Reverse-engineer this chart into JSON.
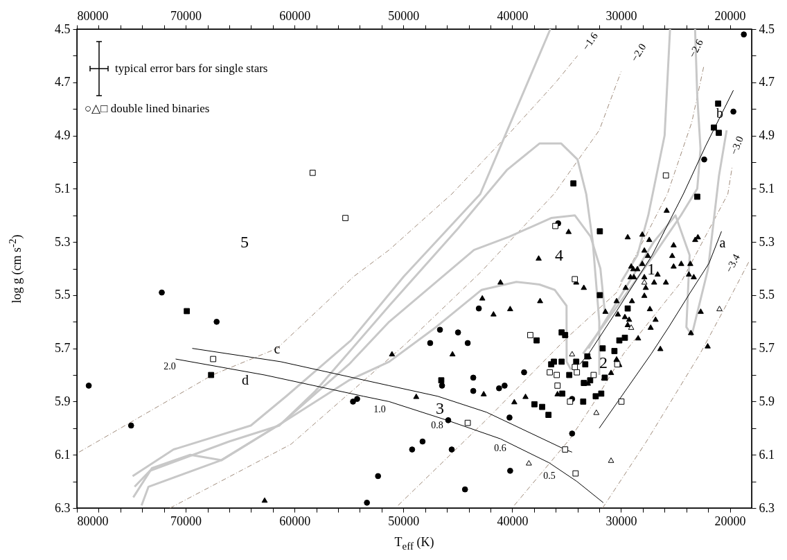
{
  "chart_data": {
    "type": "scatter",
    "xlabel": "T$_{eff}$ (K)",
    "ylabel": "log g (cm s$^{-2}$)",
    "xlim": [
      80000,
      18000
    ],
    "ylim": [
      6.3,
      4.5
    ],
    "xticks": [
      80000,
      {
        "value": 78000,
        "label": null
      },
      {
        "value": 76000,
        "label": null
      },
      {
        "value": 74000,
        "label": null
      },
      {
        "value": 72000,
        "label": null
      },
      70000,
      {
        "value": 68000,
        "label": null
      },
      {
        "value": 66000,
        "label": null
      },
      {
        "value": 64000,
        "label": null
      },
      {
        "value": 62000,
        "label": null
      },
      60000,
      {
        "value": 58000,
        "label": null
      },
      {
        "value": 56000,
        "label": null
      },
      {
        "value": 54000,
        "label": null
      },
      {
        "value": 52000,
        "label": null
      },
      50000,
      {
        "value": 48000,
        "label": null
      },
      {
        "value": 46000,
        "label": null
      },
      {
        "value": 44000,
        "label": null
      },
      {
        "value": 42000,
        "label": null
      },
      40000,
      {
        "value": 38000,
        "label": null
      },
      {
        "value": 36000,
        "label": null
      },
      {
        "value": 34000,
        "label": null
      },
      {
        "value": 32000,
        "label": null
      },
      30000,
      {
        "value": 28000,
        "label": null
      },
      {
        "value": 26000,
        "label": null
      },
      {
        "value": 24000,
        "label": null
      },
      {
        "value": 22000,
        "label": null
      },
      20000
    ],
    "yticks": [
      4.5,
      {
        "value": 4.6,
        "label": null
      },
      4.7,
      {
        "value": 4.8,
        "label": null
      },
      4.9,
      {
        "value": 5.0,
        "label": null
      },
      5.1,
      {
        "value": 5.2,
        "label": null
      },
      5.3,
      {
        "value": 5.4,
        "label": null
      },
      5.5,
      {
        "value": 5.6,
        "label": null
      },
      5.7,
      {
        "value": 5.8,
        "label": null
      },
      5.9,
      {
        "value": 6.0,
        "label": null
      },
      6.1,
      {
        "value": 6.2,
        "label": null
      },
      6.3
    ],
    "x2lim": [
      80000,
      18000
    ],
    "y2lim": [
      6.3,
      4.5
    ],
    "x2ticks": [
      80000,
      {
        "value": 78000,
        "label": null
      },
      {
        "value": 76000,
        "label": null
      },
      {
        "value": 74000,
        "label": null
      },
      {
        "value": 72000,
        "label": null
      },
      70000,
      {
        "value": 68000,
        "label": null
      },
      {
        "value": 66000,
        "label": null
      },
      {
        "value": 64000,
        "label": null
      },
      {
        "value": 62000,
        "label": null
      },
      60000,
      {
        "value": 58000,
        "label": null
      },
      {
        "value": 56000,
        "label": null
      },
      {
        "value": 54000,
        "label": null
      },
      {
        "value": 52000,
        "label": null
      },
      50000,
      {
        "value": 48000,
        "label": null
      },
      {
        "value": 46000,
        "label": null
      },
      {
        "value": 44000,
        "label": null
      },
      {
        "value": 42000,
        "label": null
      },
      40000,
      {
        "value": 38000,
        "label": null
      },
      {
        "value": 36000,
        "label": null
      },
      {
        "value": 34000,
        "label": null
      },
      {
        "value": 32000,
        "label": null
      },
      30000,
      {
        "value": 28000,
        "label": null
      },
      {
        "value": 26000,
        "label": null
      },
      {
        "value": 24000,
        "label": null
      },
      {
        "value": 22000,
        "label": null
      },
      20000
    ],
    "y2ticks": [
      4.5,
      {
        "value": 4.6,
        "label": null
      },
      4.7,
      {
        "value": 4.8,
        "label": null
      },
      4.9,
      {
        "value": 5.0,
        "label": null
      },
      5.1,
      {
        "value": 5.2,
        "label": null
      },
      5.3,
      {
        "value": 5.4,
        "label": null
      },
      5.5,
      {
        "value": 5.6,
        "label": null
      },
      5.7,
      {
        "value": 5.8,
        "label": null
      },
      5.9,
      {
        "value": 6.0,
        "label": null
      },
      6.1,
      {
        "value": 6.2,
        "label": null
      },
      6.3
    ],
    "series": [
      {
        "type": "line",
        "color": "#a08c7c",
        "line_style": "dashdot",
        "x": [
          79800,
          67550,
          61600,
          54570,
          51310,
          45560,
          40000,
          36000,
          34000
        ],
        "values": [
          6.09,
          5.8,
          5.7,
          5.43,
          5.33,
          5.12,
          4.88,
          4.7,
          4.6
        ]
      },
      {
        "type": "line",
        "color": "#a08c7c",
        "line_style": "dashdot",
        "x": [
          71440,
          60320,
          49970,
          42810,
          36170,
          32000,
          30000
        ],
        "values": [
          6.3,
          6.06,
          5.69,
          5.41,
          5.12,
          4.88,
          4.66
        ]
      },
      {
        "type": "line",
        "color": "#a08c7c",
        "line_style": "dashdot",
        "x": [
          50480,
          42170,
          36420,
          34700,
          30410,
          25750,
          23500,
          22400
        ],
        "values": [
          6.29,
          5.96,
          5.72,
          5.65,
          5.49,
          5.12,
          4.85,
          4.64
        ]
      },
      {
        "type": "line",
        "color": "#a08c7c",
        "line_style": "dashdot",
        "x": [
          39810,
          34690,
          32590,
          29770,
          24470,
          20190,
          19800
        ],
        "values": [
          6.29,
          6.04,
          5.91,
          5.72,
          5.45,
          5.12,
          5.02
        ]
      },
      {
        "type": "line",
        "color": "#a08c7c",
        "line_style": "dashdot",
        "x": [
          31700,
          27670,
          22740,
          20500,
          18200
        ],
        "values": [
          6.3,
          6.05,
          5.72,
          5.55,
          5.37
        ]
      },
      {
        "type": "line",
        "color": "#c8c8c8",
        "x": [
          74880,
          71120,
          64020,
          60770,
          54820,
          49970,
          42940,
          36500
        ],
        "values": [
          6.18,
          6.08,
          5.99,
          5.88,
          5.67,
          5.43,
          5.12,
          4.5
        ]
      },
      {
        "type": "line",
        "color": "#c8c8c8",
        "x": [
          74700,
          73290,
          66010,
          61400,
          58080,
          51310,
          45000,
          40500,
          37500,
          35500,
          34000,
          33200,
          32600,
          32000,
          32000
        ],
        "values": [
          6.22,
          6.16,
          6.05,
          5.99,
          5.86,
          5.54,
          5.25,
          5.03,
          4.93,
          4.93,
          4.99,
          5.12,
          5.3,
          5.6,
          5.8
        ]
      },
      {
        "type": "line",
        "color": "#c8c8c8",
        "x": [
          74820,
          73100,
          69580,
          66710,
          61150,
          55000,
          51310,
          43510,
          40250,
          36420,
          34250,
          32800,
          31900,
          31500
        ],
        "values": [
          6.26,
          6.15,
          6.1,
          6.12,
          5.98,
          5.76,
          5.6,
          5.33,
          5.28,
          5.21,
          5.2,
          5.28,
          5.4,
          5.56
        ]
      },
      {
        "type": "line",
        "color": "#c8c8c8",
        "x": [
          74060,
          73420,
          66710,
          61150,
          55000,
          51300,
          47000,
          42810,
          39620,
          37500,
          36100,
          35010,
          35000,
          34600
        ],
        "values": [
          6.29,
          6.22,
          6.12,
          5.98,
          5.82,
          5.75,
          5.62,
          5.48,
          5.45,
          5.46,
          5.48,
          5.54,
          5.75,
          5.78
        ]
      },
      {
        "type": "line",
        "color": "#c8c8c8",
        "x": [
          23200,
          23000,
          22700,
          23000,
          24500,
          27000,
          30500,
          33500
        ],
        "values": [
          4.5,
          4.75,
          4.95,
          5.1,
          5.2,
          5.35,
          5.55,
          5.72
        ]
      },
      {
        "type": "line",
        "color": "#c8c8c8",
        "x": [
          20300,
          21000,
          22000,
          23500,
          24000,
          23700,
          25000,
          27000,
          30000,
          33000
        ],
        "values": [
          4.88,
          5.05,
          5.4,
          5.65,
          5.62,
          5.35,
          5.2,
          5.3,
          5.5,
          5.7
        ]
      },
      {
        "type": "line",
        "color": "#c8c8c8",
        "x": [
          25500,
          26000,
          27500,
          28500,
          30000
        ],
        "values": [
          4.5,
          4.9,
          5.2,
          5.35,
          5.45
        ]
      },
      {
        "type": "line",
        "color": "#000000",
        "x": [
          20770,
          21920,
          23640,
          25620,
          27220,
          32010
        ],
        "values": [
          5.26,
          5.38,
          5.49,
          5.62,
          5.72,
          6.0
        ]
      },
      {
        "type": "line",
        "color": "#000000",
        "x": [
          19680,
          22240,
          24280,
          27150,
          30410,
          32970,
          33800
        ],
        "values": [
          4.73,
          4.94,
          5.12,
          5.35,
          5.56,
          5.72,
          5.76
        ]
      },
      {
        "type": "line",
        "color": "#000000",
        "x": [
          69400,
          61280,
          51310,
          46840,
          42360,
          35140,
          34500
        ],
        "values": [
          5.7,
          5.75,
          5.84,
          5.88,
          5.94,
          6.08,
          6.09
        ]
      },
      {
        "type": "line",
        "color": "#000000",
        "x": [
          70930,
          62750,
          53670,
          51310,
          46000,
          41080,
          36610,
          34060,
          31630
        ],
        "values": [
          5.74,
          5.8,
          5.88,
          5.9,
          5.97,
          6.04,
          6.13,
          6.2,
          6.28
        ]
      },
      {
        "marker": "circle",
        "color": "#000000",
        "x": [
          18720,
          19680,
          22360,
          35780,
          43070,
          46640,
          44980,
          47540,
          44090,
          38910,
          43580,
          46450,
          43580,
          41210,
          40700,
          34500,
          40250,
          45880,
          48240,
          49200,
          45560,
          34500,
          40190,
          44340,
          78910,
          75020,
          72200,
          67160,
          54630,
          54250,
          52330,
          53350
        ],
        "values": [
          4.52,
          4.81,
          4.99,
          5.23,
          5.55,
          5.63,
          5.64,
          5.68,
          5.68,
          5.79,
          5.81,
          5.84,
          5.86,
          5.85,
          5.84,
          5.89,
          5.96,
          5.97,
          6.05,
          6.08,
          6.08,
          6.02,
          6.16,
          6.23,
          5.84,
          5.99,
          5.49,
          5.6,
          5.9,
          5.89,
          6.18,
          6.28
        ]
      },
      {
        "marker": "square",
        "color": "#000000",
        "x": [
          21080,
          21470,
          21020,
          23000,
          34380,
          31950,
          31950,
          29390,
          29650,
          30160,
          31690,
          30610,
          33100,
          35460,
          35140,
          37760,
          36170,
          35460,
          34120,
          33290,
          33420,
          32840,
          32330,
          31820,
          33480,
          31500,
          36420,
          34760,
          35400,
          37960,
          37250,
          36670,
          46520,
          69900,
          67670
        ],
        "values": [
          4.78,
          4.87,
          4.89,
          5.13,
          5.08,
          5.26,
          5.5,
          5.55,
          5.66,
          5.67,
          5.7,
          5.71,
          5.73,
          5.64,
          5.65,
          5.67,
          5.75,
          5.75,
          5.75,
          5.76,
          5.83,
          5.82,
          5.88,
          5.87,
          5.9,
          5.81,
          5.76,
          5.8,
          5.87,
          5.91,
          5.92,
          5.95,
          5.82,
          5.56,
          5.8
        ]
      },
      {
        "marker": "triangle",
        "color": "#000000",
        "x": [
          25810,
          29390,
          28050,
          27410,
          25170,
          23190,
          22940,
          27860,
          27540,
          25300,
          29070,
          28880,
          28500,
          28050,
          25170,
          24470,
          23640,
          26640,
          27860,
          29130,
          28820,
          23770,
          23320,
          26960,
          25880,
          27730,
          29580,
          27860,
          30410,
          29000,
          27350,
          31440,
          22680,
          30290,
          29650,
          26830,
          29260,
          29390,
          27280,
          23580,
          22040,
          26390,
          28430,
          30410,
          34120,
          33420,
          30410,
          30160,
          30920,
          31570,
          33040,
          32970,
          34820,
          37570,
          41080,
          42750,
          37440,
          40190,
          41720,
          51050,
          45490,
          48820,
          42620,
          39810,
          38780,
          35840,
          62750
        ],
        "values": [
          5.18,
          5.28,
          5.27,
          5.29,
          5.31,
          5.29,
          5.28,
          5.33,
          5.35,
          5.35,
          5.39,
          5.4,
          5.4,
          5.38,
          5.39,
          5.38,
          5.38,
          5.42,
          5.43,
          5.43,
          5.43,
          5.42,
          5.43,
          5.45,
          5.45,
          5.47,
          5.47,
          5.5,
          5.52,
          5.52,
          5.55,
          5.56,
          5.56,
          5.57,
          5.58,
          5.59,
          5.59,
          5.61,
          5.62,
          5.64,
          5.69,
          5.7,
          5.66,
          5.74,
          5.45,
          5.47,
          5.74,
          5.76,
          5.79,
          5.81,
          5.83,
          5.73,
          5.26,
          5.36,
          5.45,
          5.51,
          5.52,
          5.55,
          5.57,
          5.72,
          5.72,
          5.88,
          5.87,
          5.9,
          5.88,
          5.87,
          6.27
        ]
      },
      {
        "marker": "square",
        "color": "#ffffff",
        "x": [
          58340,
          55330,
          67480,
          36040,
          38340,
          34250,
          29970,
          30350,
          32520,
          34060,
          34250,
          34180,
          44090,
          35140,
          36550,
          35910,
          35840,
          34690,
          25880
        ],
        "values": [
          5.04,
          5.21,
          5.74,
          5.24,
          5.65,
          5.44,
          5.9,
          5.76,
          5.8,
          5.79,
          5.77,
          6.17,
          5.98,
          6.08,
          5.79,
          5.8,
          5.84,
          5.9,
          5.05
        ]
      },
      {
        "marker": "triangle",
        "color": "#ffffff",
        "x": [
          27860,
          20960,
          29070,
          32270,
          30920,
          38470,
          34500
        ],
        "values": [
          5.45,
          5.55,
          5.62,
          5.94,
          6.12,
          6.13,
          5.72
        ]
      }
    ],
    "annotations": [
      "typical error bars for single stars",
      "○△□ double lined binaries",
      "1",
      "2",
      "3",
      "4",
      "5",
      "a",
      "b",
      "c",
      "d",
      "2.0",
      "1.0",
      "0.8",
      "0.6",
      "0.5",
      "−1.6",
      "−2.0",
      "−2.6",
      "−3.0",
      "−3.4"
    ]
  }
}
